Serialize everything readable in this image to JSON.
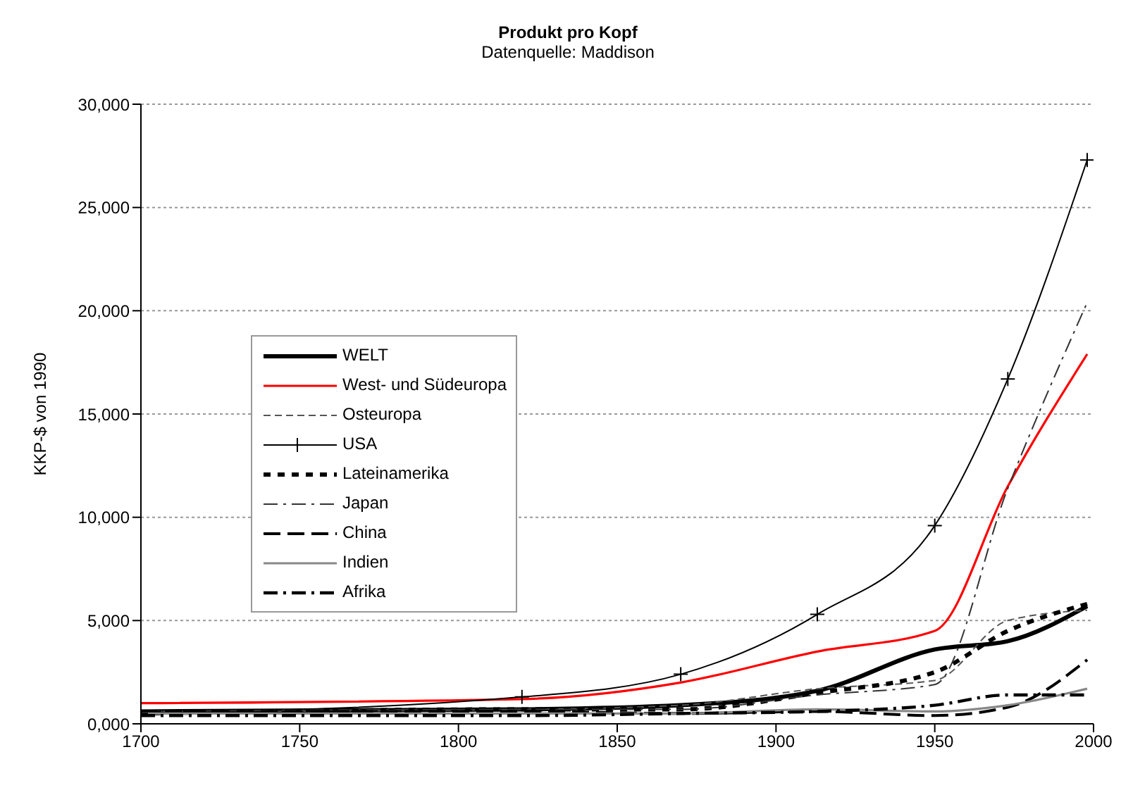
{
  "chart_data": {
    "type": "line",
    "title": "Produkt pro Kopf",
    "subtitle": "Datenquelle: Maddison",
    "ylabel": "KKP-$ von 1990",
    "x": [
      1700,
      1820,
      1870,
      1913,
      1950,
      1973,
      1998
    ],
    "xlim": [
      1700,
      2000
    ],
    "xticks": [
      1700,
      1750,
      1800,
      1850,
      1900,
      1950,
      2000
    ],
    "ylim": [
      0,
      30000
    ],
    "yticks": [
      {
        "value": 0,
        "label": "0,000"
      },
      {
        "value": 5000,
        "label": "5,000"
      },
      {
        "value": 10000,
        "label": "10,000"
      },
      {
        "value": 15000,
        "label": "15,000"
      },
      {
        "value": 20000,
        "label": "20,000"
      },
      {
        "value": 25000,
        "label": "25,000"
      },
      {
        "value": 30000,
        "label": "30,000"
      }
    ],
    "grid": "y",
    "legend": "left",
    "marker": "none",
    "series": [
      {
        "name": "WELT",
        "color": "#000000",
        "line_style": "solid",
        "values": [
          600,
          700,
          900,
          1600,
          3600,
          4000,
          5700
        ]
      },
      {
        "name": "West- und Südeuropa",
        "color": "#ff0000",
        "line_style": "solid",
        "values": [
          1000,
          1200,
          2000,
          3500,
          4500,
          11500,
          17900
        ]
      },
      {
        "name": "Osteuropa",
        "color": "#555555",
        "line_style": "dashed",
        "values": [
          600,
          700,
          900,
          1700,
          2100,
          5000,
          5500
        ]
      },
      {
        "name": "USA",
        "color": "#000000",
        "line_style": "solid",
        "marker": "cross",
        "values": [
          500,
          1300,
          2400,
          5300,
          9600,
          16700,
          27300
        ]
      },
      {
        "name": "Lateinamerika",
        "color": "#000000",
        "line_style": "dotted",
        "values": [
          500,
          700,
          700,
          1500,
          2500,
          4500,
          5800
        ]
      },
      {
        "name": "Japan",
        "color": "#333333",
        "line_style": "dashed",
        "values": [
          600,
          700,
          700,
          1400,
          1900,
          11400,
          20400
        ]
      },
      {
        "name": "China",
        "color": "#000000",
        "line_style": "dashed",
        "values": [
          600,
          600,
          500,
          600,
          400,
          800,
          3100
        ]
      },
      {
        "name": "Indien",
        "color": "#888888",
        "line_style": "solid",
        "values": [
          500,
          500,
          500,
          700,
          600,
          900,
          1700
        ]
      },
      {
        "name": "Afrika",
        "color": "#000000",
        "line_style": "dashed",
        "values": [
          400,
          400,
          500,
          600,
          900,
          1400,
          1400
        ]
      }
    ]
  }
}
